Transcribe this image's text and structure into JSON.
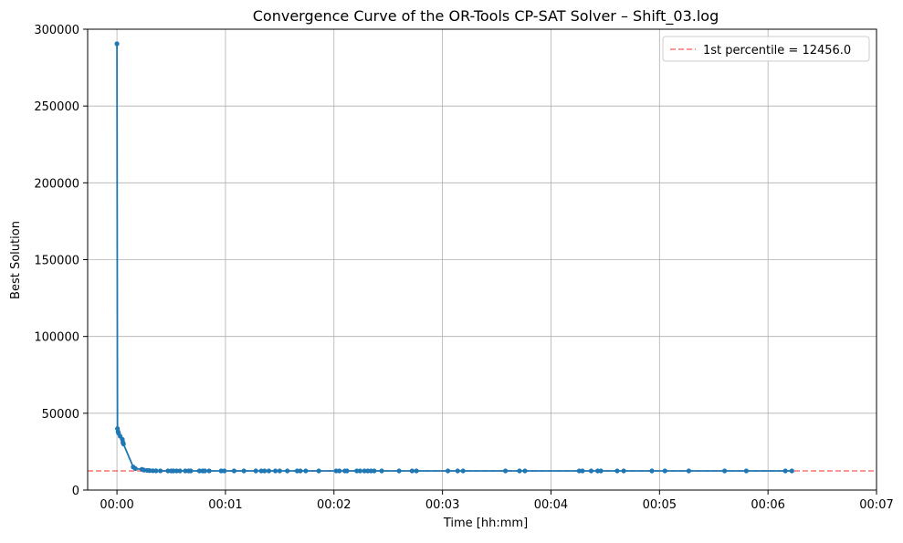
{
  "chart_data": {
    "type": "line",
    "title": "Convergence Curve of the OR-Tools CP-SAT Solver – Shift_03.log",
    "xlabel": "Time [hh:mm]",
    "ylabel": "Best Solution",
    "xlim": [
      -0.27,
      7.0
    ],
    "ylim": [
      0,
      300000
    ],
    "x_ticks": [
      0,
      1,
      2,
      3,
      4,
      5,
      6,
      7
    ],
    "x_tick_labels": [
      "00:00",
      "00:01",
      "00:02",
      "00:03",
      "00:04",
      "00:05",
      "00:06",
      "00:07"
    ],
    "y_ticks": [
      0,
      50000,
      100000,
      150000,
      200000,
      250000,
      300000
    ],
    "y_tick_labels": [
      "0",
      "50000",
      "100000",
      "150000",
      "200000",
      "250000",
      "300000"
    ],
    "grid": true,
    "legend_position": "top-right",
    "series": [
      {
        "color": "#1f77b4",
        "x": [
          0.0,
          0.005,
          0.01,
          0.015,
          0.03,
          0.05,
          0.055,
          0.06,
          0.15,
          0.17,
          0.23,
          0.25,
          0.28,
          0.3,
          0.33,
          0.36,
          0.4,
          0.47,
          0.5,
          0.52,
          0.55,
          0.58,
          0.63,
          0.66,
          0.68,
          0.76,
          0.79,
          0.81,
          0.85,
          0.96,
          0.99,
          1.08,
          1.17,
          1.28,
          1.33,
          1.36,
          1.4,
          1.46,
          1.5,
          1.57,
          1.66,
          1.69,
          1.74,
          1.86,
          2.02,
          2.05,
          2.1,
          2.12,
          2.21,
          2.24,
          2.28,
          2.31,
          2.34,
          2.37,
          2.44,
          2.6,
          2.72,
          2.76,
          3.05,
          3.14,
          3.19,
          3.58,
          3.71,
          3.76,
          4.26,
          4.29,
          4.37,
          4.43,
          4.46,
          4.61,
          4.67,
          4.93,
          5.05,
          5.27,
          5.6,
          5.8,
          6.16,
          6.22
        ],
        "y": [
          290500,
          40000,
          38000,
          37000,
          35000,
          33000,
          31000,
          30000,
          15000,
          14000,
          13500,
          13000,
          12800,
          12700,
          12600,
          12550,
          12500,
          12490,
          12485,
          12480,
          12478,
          12476,
          12474,
          12472,
          12470,
          12468,
          12466,
          12465,
          12464,
          12463,
          12462,
          12461,
          12460,
          12460,
          12459,
          12459,
          12459,
          12458,
          12458,
          12458,
          12458,
          12457,
          12457,
          12457,
          12457,
          12457,
          12457,
          12457,
          12457,
          12457,
          12456,
          12456,
          12456,
          12456,
          12456,
          12456,
          12456,
          12456,
          12456,
          12456,
          12456,
          12456,
          12456,
          12456,
          12456,
          12456,
          12456,
          12456,
          12456,
          12456,
          12456,
          12456,
          12456,
          12456,
          12456,
          12456,
          12456,
          12456
        ]
      }
    ],
    "reference_line": {
      "label": "1st percentile  = 12456.0",
      "y": 12456.0,
      "color": "#ff0000",
      "style": "dashed"
    }
  }
}
